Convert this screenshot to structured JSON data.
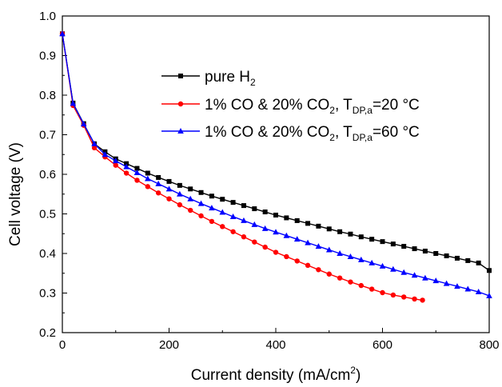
{
  "chart_data": {
    "type": "line",
    "xlabel": "Current density (mA/cm",
    "xlabel_sup": "2",
    "xlabel_tail": ")",
    "ylabel": "Cell voltage (V)",
    "xlim": [
      0,
      800
    ],
    "ylim": [
      0.2,
      1.0
    ],
    "x_ticks": [
      0,
      200,
      400,
      600,
      800
    ],
    "y_ticks": [
      0.2,
      0.3,
      0.4,
      0.5,
      0.6,
      0.7,
      0.8,
      0.9,
      1.0
    ],
    "x_tick_labels": [
      "0",
      "200",
      "400",
      "600",
      "800"
    ],
    "y_tick_labels": [
      "0.2",
      "0.3",
      "0.4",
      "0.5",
      "0.6",
      "0.7",
      "0.8",
      "0.9",
      "1.0"
    ],
    "legend_position": "top-right",
    "grid": false,
    "series": [
      {
        "name": "pure H2",
        "legend": {
          "main": "pure H",
          "sub": "2",
          "tail": ""
        },
        "color": "#000000",
        "marker": "square",
        "x": [
          0,
          20,
          40,
          60,
          80,
          100,
          120,
          140,
          160,
          180,
          200,
          220,
          240,
          260,
          280,
          300,
          320,
          340,
          360,
          380,
          400,
          420,
          440,
          460,
          480,
          500,
          520,
          540,
          560,
          580,
          600,
          620,
          640,
          660,
          680,
          700,
          720,
          740,
          760,
          780,
          800
        ],
        "y": [
          0.955,
          0.78,
          0.728,
          0.677,
          0.657,
          0.639,
          0.627,
          0.615,
          0.603,
          0.592,
          0.582,
          0.572,
          0.563,
          0.554,
          0.545,
          0.537,
          0.529,
          0.521,
          0.513,
          0.505,
          0.497,
          0.49,
          0.483,
          0.476,
          0.469,
          0.462,
          0.455,
          0.449,
          0.442,
          0.436,
          0.43,
          0.424,
          0.418,
          0.412,
          0.406,
          0.4,
          0.394,
          0.388,
          0.382,
          0.376,
          0.357
        ]
      },
      {
        "name": "1% CO & 20% CO2, TDP,a=20 °C",
        "legend": {
          "main": "1% CO & 20% CO",
          "sub": "2",
          "tail": ", T",
          "sub2": "DP,a",
          "tail2": "=20 °C"
        },
        "color": "#ff0000",
        "marker": "circle",
        "x": [
          0,
          20,
          40,
          60,
          80,
          100,
          120,
          140,
          160,
          180,
          200,
          220,
          240,
          260,
          280,
          300,
          320,
          340,
          360,
          380,
          400,
          420,
          440,
          460,
          480,
          500,
          520,
          540,
          560,
          580,
          600,
          620,
          640,
          660,
          675
        ],
        "y": [
          0.955,
          0.774,
          0.724,
          0.667,
          0.644,
          0.623,
          0.603,
          0.585,
          0.569,
          0.553,
          0.538,
          0.523,
          0.509,
          0.495,
          0.481,
          0.468,
          0.455,
          0.442,
          0.429,
          0.416,
          0.403,
          0.392,
          0.381,
          0.37,
          0.359,
          0.348,
          0.338,
          0.328,
          0.319,
          0.31,
          0.301,
          0.295,
          0.29,
          0.285,
          0.282
        ]
      },
      {
        "name": "1% CO & 20% CO2, TDP,a=60 °C",
        "legend": {
          "main": "1% CO & 20% CO",
          "sub": "2",
          "tail": ", T",
          "sub2": "DP,a",
          "tail2": "=60 °C"
        },
        "color": "#0000ff",
        "marker": "triangle",
        "x": [
          0,
          20,
          40,
          60,
          80,
          100,
          120,
          140,
          160,
          180,
          200,
          220,
          240,
          260,
          280,
          300,
          320,
          340,
          360,
          380,
          400,
          420,
          440,
          460,
          480,
          500,
          520,
          540,
          560,
          580,
          600,
          620,
          640,
          660,
          680,
          700,
          720,
          740,
          760,
          780,
          800
        ],
        "y": [
          0.955,
          0.779,
          0.727,
          0.677,
          0.65,
          0.634,
          0.619,
          0.604,
          0.589,
          0.576,
          0.563,
          0.55,
          0.538,
          0.526,
          0.515,
          0.504,
          0.493,
          0.483,
          0.473,
          0.463,
          0.454,
          0.445,
          0.436,
          0.427,
          0.418,
          0.409,
          0.4,
          0.392,
          0.384,
          0.376,
          0.368,
          0.36,
          0.352,
          0.345,
          0.338,
          0.331,
          0.324,
          0.317,
          0.31,
          0.303,
          0.293
        ]
      }
    ]
  }
}
